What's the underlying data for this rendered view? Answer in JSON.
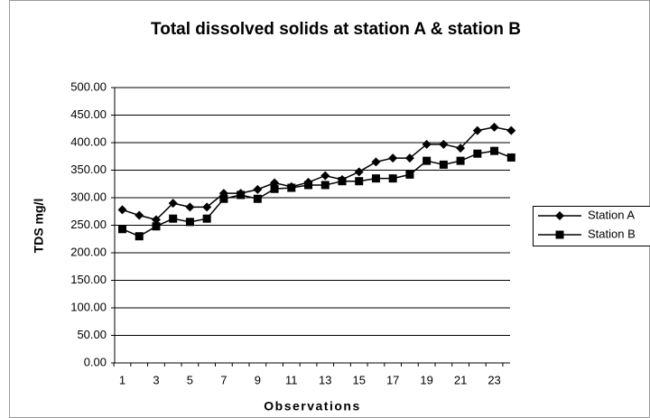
{
  "chart_data": {
    "type": "line",
    "title": "Total dissolved solids at station A & station B",
    "x_label": "Observations",
    "y_label": "TDS mg/l",
    "categories": [
      "1",
      null,
      "3",
      null,
      "5",
      null,
      "7",
      null,
      "9",
      null,
      "11",
      null,
      "13",
      null,
      "15",
      null,
      "17",
      null,
      "19",
      null,
      "21",
      null,
      "23",
      null
    ],
    "series": [
      {
        "name": "Station A",
        "color": "#000000",
        "marker": "diamond",
        "values": [
          278,
          268,
          260,
          290,
          283,
          283,
          308,
          308,
          315,
          327,
          320,
          328,
          340,
          333,
          347,
          365,
          372,
          372,
          397,
          397,
          390,
          422,
          428,
          422
        ]
      },
      {
        "name": "Station B",
        "color": "#000000",
        "marker": "square",
        "values": [
          243,
          230,
          248,
          262,
          256,
          262,
          298,
          305,
          298,
          316,
          318,
          323,
          323,
          330,
          330,
          335,
          335,
          342,
          367,
          360,
          367,
          380,
          385,
          373
        ]
      }
    ],
    "ylim": [
      0,
      500
    ],
    "yticks": [
      {
        "value": 0,
        "label": "0.00"
      },
      {
        "value": 50,
        "label": "50.00"
      },
      {
        "value": 100,
        "label": "100.00"
      },
      {
        "value": 150,
        "label": "150.00"
      },
      {
        "value": 200,
        "label": "200.00"
      },
      {
        "value": 250,
        "label": "250.00"
      },
      {
        "value": 300,
        "label": "300.00"
      },
      {
        "value": 350,
        "label": "350.00"
      },
      {
        "value": 400,
        "label": "400.00"
      },
      {
        "value": 450,
        "label": "450.00"
      },
      {
        "value": 500,
        "label": "500.00"
      }
    ],
    "grid": true,
    "legend": "right"
  }
}
